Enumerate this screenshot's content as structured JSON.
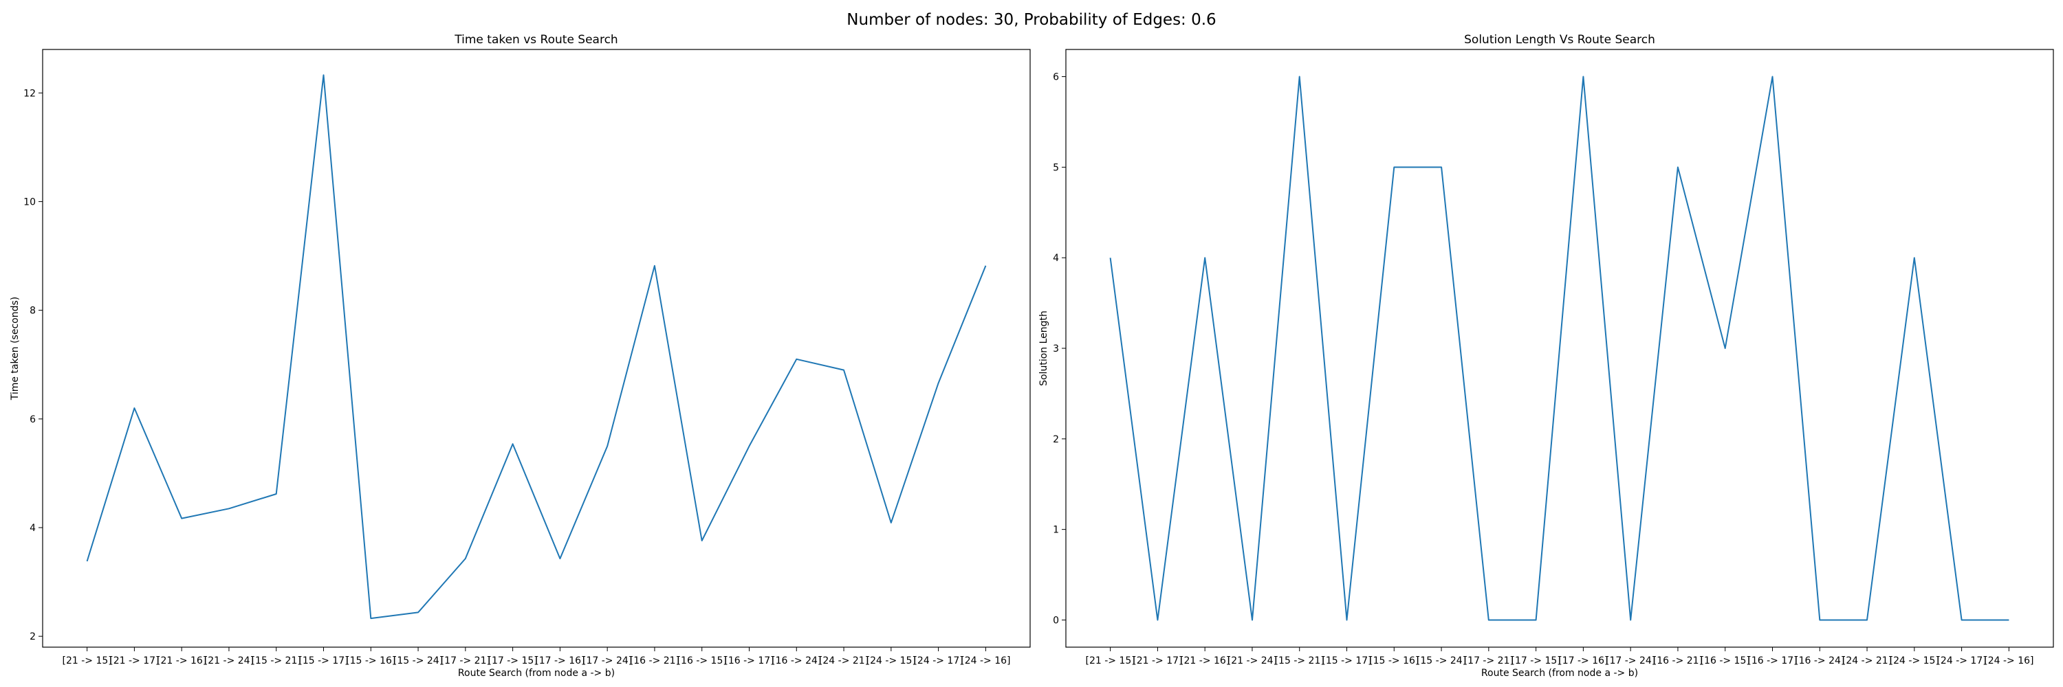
{
  "figure": {
    "suptitle": "Number of nodes: 30, Probability of Edges: 0.6"
  },
  "chart_data": [
    {
      "type": "line",
      "title": "Time taken vs Route Search",
      "xlabel": "Route Search (from node a -> b)",
      "ylabel": "Time taken (seconds)",
      "categories": [
        "[21 -> 15]",
        "[21 -> 17]",
        "[21 -> 16]",
        "[21 -> 24]",
        "[15 -> 21]",
        "[15 -> 17]",
        "[15 -> 16]",
        "[15 -> 24]",
        "[17 -> 21]",
        "[17 -> 15]",
        "[17 -> 16]",
        "[17 -> 24]",
        "[16 -> 21]",
        "[16 -> 15]",
        "[16 -> 17]",
        "[16 -> 24]",
        "[24 -> 21]",
        "[24 -> 15]",
        "[24 -> 17]",
        "[24 -> 16]"
      ],
      "values": [
        3.38,
        6.2,
        4.17,
        4.35,
        4.62,
        12.33,
        2.33,
        2.44,
        3.43,
        5.54,
        3.43,
        5.5,
        8.82,
        3.76,
        5.5,
        7.1,
        6.9,
        4.09,
        6.66,
        8.82
      ],
      "ylim": [
        1.8,
        12.8
      ],
      "yticks": [
        2,
        4,
        6,
        8,
        10,
        12
      ],
      "grid": false,
      "line_color": "#1f77b4"
    },
    {
      "type": "line",
      "title": "Solution Length Vs Route Search",
      "xlabel": "Route Search (from node a -> b)",
      "ylabel": "Solution Length",
      "categories": [
        "[21 -> 15]",
        "[21 -> 17]",
        "[21 -> 16]",
        "[21 -> 24]",
        "[15 -> 21]",
        "[15 -> 17]",
        "[15 -> 16]",
        "[15 -> 24]",
        "[17 -> 21]",
        "[17 -> 15]",
        "[17 -> 16]",
        "[17 -> 24]",
        "[16 -> 21]",
        "[16 -> 15]",
        "[16 -> 17]",
        "[16 -> 24]",
        "[24 -> 21]",
        "[24 -> 15]",
        "[24 -> 17]",
        "[24 -> 16]"
      ],
      "values": [
        4,
        0,
        4,
        0,
        6,
        0,
        5,
        5,
        0,
        0,
        6,
        0,
        5,
        3,
        6,
        0,
        0,
        4,
        0,
        0
      ],
      "ylim": [
        -0.3,
        6.3
      ],
      "yticks": [
        0,
        1,
        2,
        3,
        4,
        5,
        6
      ],
      "grid": false,
      "line_color": "#1f77b4"
    }
  ]
}
